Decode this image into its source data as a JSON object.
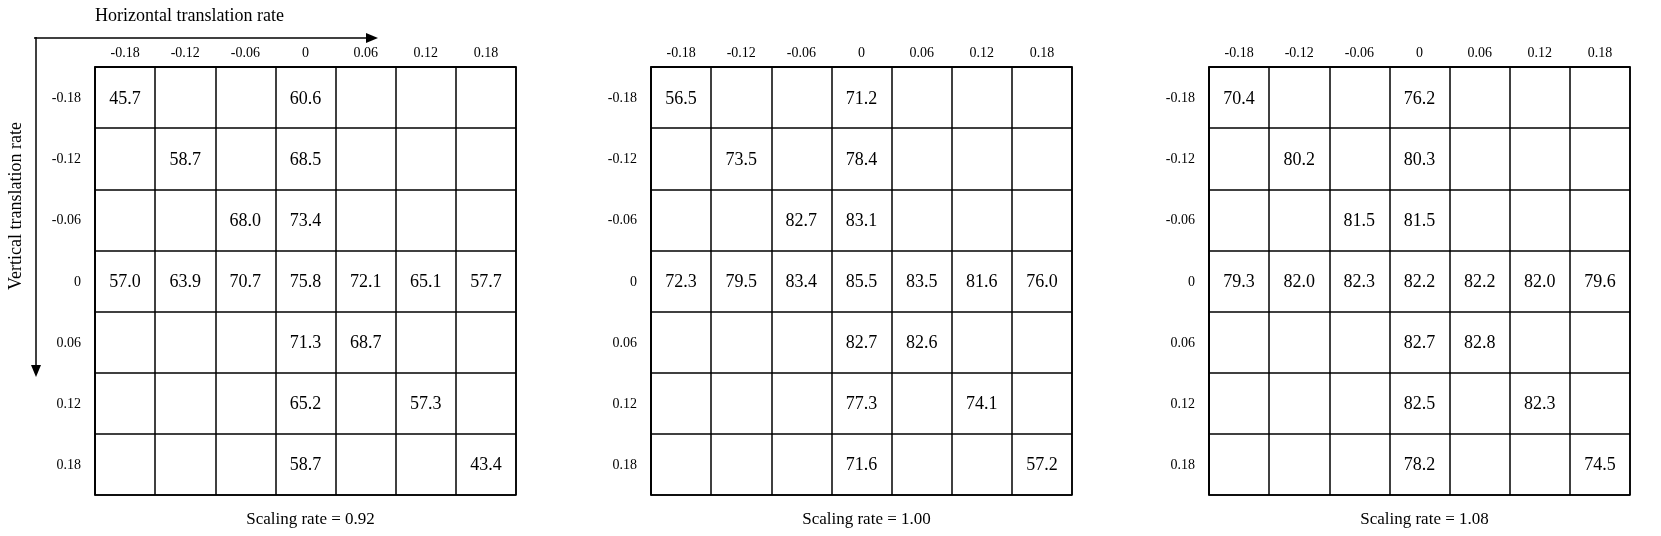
{
  "chart_data": [
    {
      "type": "heatmap",
      "title": "Scaling rate = 0.92",
      "xlabel": "Horizontal translation rate",
      "ylabel": "Vertical translation rate",
      "data_labels": true,
      "categories": [
        "-0.18",
        "-0.12",
        "-0.06",
        "0",
        "0.06",
        "0.12",
        "0.18"
      ],
      "y_categories": [
        "-0.18",
        "-0.12",
        "-0.06",
        "0",
        "0.06",
        "0.12",
        "0.18"
      ],
      "cells": [
        [
          45.7,
          null,
          null,
          60.6,
          null,
          null,
          null
        ],
        [
          null,
          58.7,
          null,
          68.5,
          null,
          null,
          null
        ],
        [
          null,
          null,
          68.0,
          73.4,
          null,
          null,
          null
        ],
        [
          57.0,
          63.9,
          70.7,
          75.8,
          72.1,
          65.1,
          57.7
        ],
        [
          null,
          null,
          null,
          71.3,
          68.7,
          null,
          null
        ],
        [
          null,
          null,
          null,
          65.2,
          null,
          57.3,
          null
        ],
        [
          null,
          null,
          null,
          58.7,
          null,
          null,
          43.4
        ]
      ],
      "cell_labels": [
        [
          "45.7",
          null,
          null,
          "60.6",
          null,
          null,
          null
        ],
        [
          null,
          "58.7",
          null,
          "68.5",
          null,
          null,
          null
        ],
        [
          null,
          null,
          "68.0",
          "73.4",
          null,
          null,
          null
        ],
        [
          "57.0",
          "63.9",
          "70.7",
          "75.8",
          "72.1",
          "65.1",
          "57.7"
        ],
        [
          null,
          null,
          null,
          "71.3",
          "68.7",
          null,
          null
        ],
        [
          null,
          null,
          null,
          "65.2",
          null,
          "57.3",
          null
        ],
        [
          null,
          null,
          null,
          "58.7",
          null,
          null,
          "43.4"
        ]
      ]
    },
    {
      "type": "heatmap",
      "title": "Scaling rate = 1.00",
      "data_labels": true,
      "categories": [
        "-0.18",
        "-0.12",
        "-0.06",
        "0",
        "0.06",
        "0.12",
        "0.18"
      ],
      "y_categories": [
        "-0.18",
        "-0.12",
        "-0.06",
        "0",
        "0.06",
        "0.12",
        "0.18"
      ],
      "cells": [
        [
          56.5,
          null,
          null,
          71.2,
          null,
          null,
          null
        ],
        [
          null,
          73.5,
          null,
          78.4,
          null,
          null,
          null
        ],
        [
          null,
          null,
          82.7,
          83.1,
          null,
          null,
          null
        ],
        [
          72.3,
          79.5,
          83.4,
          85.5,
          83.5,
          81.6,
          76.0
        ],
        [
          null,
          null,
          null,
          82.7,
          82.6,
          null,
          null
        ],
        [
          null,
          null,
          null,
          77.3,
          null,
          74.1,
          null
        ],
        [
          null,
          null,
          null,
          71.6,
          null,
          null,
          57.2
        ]
      ],
      "cell_labels": [
        [
          "56.5",
          null,
          null,
          "71.2",
          null,
          null,
          null
        ],
        [
          null,
          "73.5",
          null,
          "78.4",
          null,
          null,
          null
        ],
        [
          null,
          null,
          "82.7",
          "83.1",
          null,
          null,
          null
        ],
        [
          "72.3",
          "79.5",
          "83.4",
          "85.5",
          "83.5",
          "81.6",
          "76.0"
        ],
        [
          null,
          null,
          null,
          "82.7",
          "82.6",
          null,
          null
        ],
        [
          null,
          null,
          null,
          "77.3",
          null,
          "74.1",
          null
        ],
        [
          null,
          null,
          null,
          "71.6",
          null,
          null,
          "57.2"
        ]
      ]
    },
    {
      "type": "heatmap",
      "title": "Scaling rate = 1.08",
      "data_labels": true,
      "categories": [
        "-0.18",
        "-0.12",
        "-0.06",
        "0",
        "0.06",
        "0.12",
        "0.18"
      ],
      "y_categories": [
        "-0.18",
        "-0.12",
        "-0.06",
        "0",
        "0.06",
        "0.12",
        "0.18"
      ],
      "cells": [
        [
          70.4,
          null,
          null,
          76.2,
          null,
          null,
          null
        ],
        [
          null,
          80.2,
          null,
          80.3,
          null,
          null,
          null
        ],
        [
          null,
          null,
          81.5,
          81.5,
          null,
          null,
          null
        ],
        [
          79.3,
          82.0,
          82.3,
          82.2,
          82.2,
          82.0,
          79.6
        ],
        [
          null,
          null,
          null,
          82.7,
          82.8,
          null,
          null
        ],
        [
          null,
          null,
          null,
          82.5,
          null,
          82.3,
          null
        ],
        [
          null,
          null,
          null,
          78.2,
          null,
          null,
          74.5
        ]
      ],
      "cell_labels": [
        [
          "70.4",
          null,
          null,
          "76.2",
          null,
          null,
          null
        ],
        [
          null,
          "80.2",
          null,
          "80.3",
          null,
          null,
          null
        ],
        [
          null,
          null,
          "81.5",
          "81.5",
          null,
          null,
          null
        ],
        [
          "79.3",
          "82.0",
          "82.3",
          "82.2",
          "82.2",
          "82.0",
          "79.6"
        ],
        [
          null,
          null,
          null,
          "82.7",
          "82.8",
          null,
          null
        ],
        [
          null,
          null,
          null,
          "82.5",
          null,
          "82.3",
          null
        ],
        [
          null,
          null,
          null,
          "78.2",
          null,
          null,
          "74.5"
        ]
      ]
    }
  ]
}
